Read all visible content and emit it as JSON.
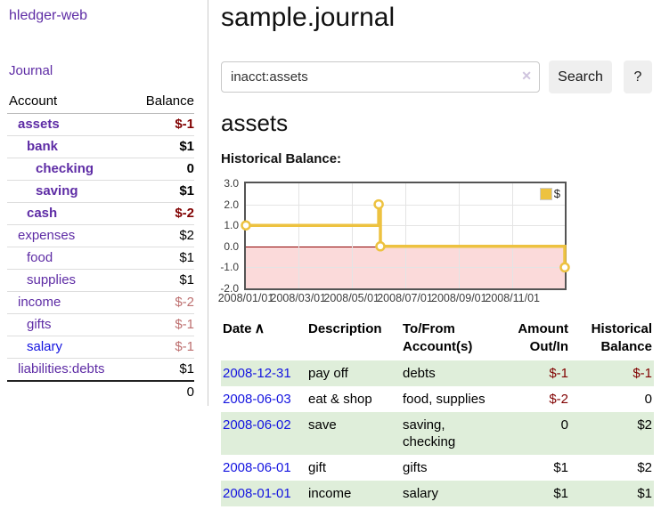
{
  "brand": {
    "title": "hledger-web"
  },
  "sidebar": {
    "journal_link": "Journal",
    "accounts": {
      "header_account": "Account",
      "header_balance": "Balance",
      "rows": [
        {
          "name": "assets",
          "balance": "$-1"
        },
        {
          "name": "bank",
          "balance": "$1"
        },
        {
          "name": "checking",
          "balance": "0"
        },
        {
          "name": "saving",
          "balance": "$1"
        },
        {
          "name": "cash",
          "balance": "$-2"
        },
        {
          "name": "expenses",
          "balance": "$2"
        },
        {
          "name": "food",
          "balance": "$1"
        },
        {
          "name": "supplies",
          "balance": "$1"
        },
        {
          "name": "income",
          "balance": "$-2"
        },
        {
          "name": "gifts",
          "balance": "$-1"
        },
        {
          "name": "salary",
          "balance": "$-1"
        },
        {
          "name": "liabilities:debts",
          "balance": "$1"
        }
      ],
      "total": "0"
    }
  },
  "header": {
    "title": "sample.journal"
  },
  "search": {
    "value": "inacct:assets",
    "clear_icon": "✕",
    "search_button": "Search",
    "help_button": "?"
  },
  "account_page": {
    "heading": "assets",
    "chart_heading": "Historical Balance:"
  },
  "chart_data": {
    "type": "line",
    "title": "Historical Balance",
    "series": [
      {
        "name": "$",
        "color": "#EDC240",
        "steps": true,
        "points": [
          [
            "2008-01-01",
            1
          ],
          [
            "2008-06-01",
            2
          ],
          [
            "2008-06-03",
            0
          ],
          [
            "2008-12-31",
            -1
          ]
        ]
      }
    ],
    "xlim": [
      "2008-01-01",
      "2008-12-31"
    ],
    "ylim": [
      -2,
      3
    ],
    "yticks": [
      "3.0",
      "2.0",
      "1.0",
      "0.0",
      "-1.0",
      "-2.0"
    ],
    "xticks": [
      "2008/01/01",
      "2008/03/01",
      "2008/05/01",
      "2008/07/01",
      "2008/09/01",
      "2008/11/01"
    ],
    "grid": true,
    "legend_position": "ne",
    "negative_region_color": "#fbdada",
    "zero_line_color": "#8e0000",
    "border_color": "#545454"
  },
  "register": {
    "sort_icon": "∧",
    "headers": {
      "date": "Date",
      "description": "Description",
      "accounts": "To/From Account(s)",
      "amount": "Amount Out/In",
      "balance": "Historical Balance"
    },
    "rows": [
      {
        "date": "2008-12-31",
        "description": "pay off",
        "accounts": "debts",
        "amount": "$-1",
        "balance": "$-1"
      },
      {
        "date": "2008-06-03",
        "description": "eat & shop",
        "accounts": "food, supplies",
        "amount": "$-2",
        "balance": "0"
      },
      {
        "date": "2008-06-02",
        "description": "save",
        "accounts": "saving, checking",
        "amount": "0",
        "balance": "$2"
      },
      {
        "date": "2008-06-01",
        "description": "gift",
        "accounts": "gifts",
        "amount": "$1",
        "balance": "$2"
      },
      {
        "date": "2008-01-01",
        "description": "income",
        "accounts": "salary",
        "amount": "$1",
        "balance": "$1"
      }
    ]
  },
  "colors": {
    "accent_purple": "#5e2ca5",
    "link_blue": "#1414e0",
    "negative_red": "#800000",
    "negative_soft_red": "#bd6f6f",
    "row_green": "#dfeeda",
    "series_gold": "#EDC240"
  }
}
